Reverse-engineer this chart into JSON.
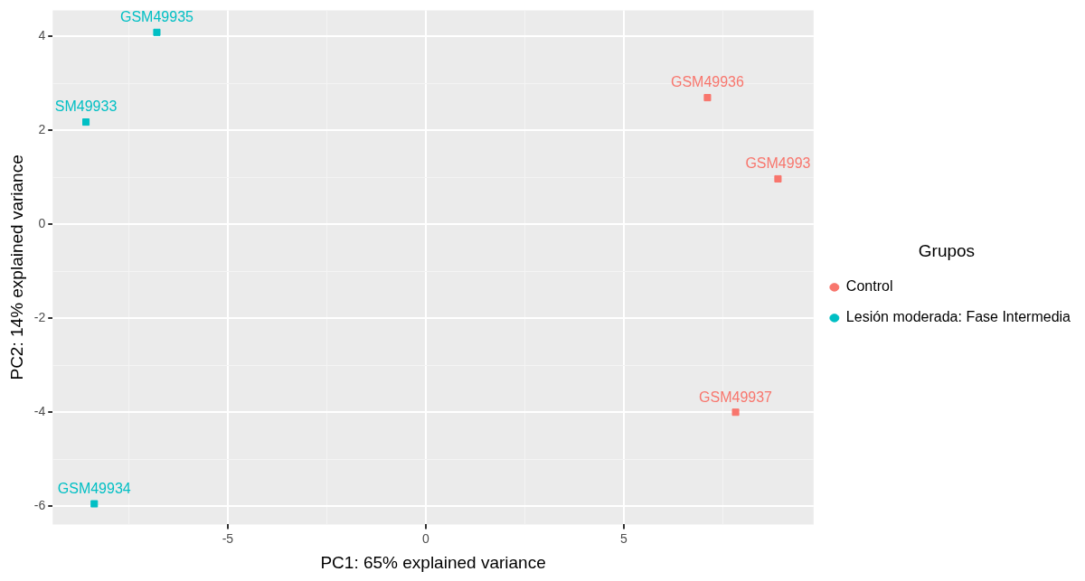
{
  "chart_data": {
    "type": "scatter",
    "xlabel": "PC1: 65% explained variance",
    "ylabel": "PC2: 14% explained variance",
    "legend_title": "Grupos",
    "series": [
      {
        "name": "Control",
        "color": "#f8766d",
        "x": [
          7.11,
          8.89,
          7.82
        ],
        "values": [
          2.7,
          0.97,
          -4.0
        ]
      },
      {
        "name": "Lesión moderada: Fase Intermedia",
        "color": "#00bfc4",
        "x": [
          -6.79,
          -8.58,
          -8.37
        ],
        "values": [
          4.09,
          2.18,
          -5.95
        ]
      }
    ],
    "annotations": [
      {
        "text": "GSM49936",
        "x": 7.11,
        "y": 2.7
      },
      {
        "text": "GSM4993",
        "x": 8.89,
        "y": 0.97
      },
      {
        "text": "GSM49937",
        "x": 7.82,
        "y": -4.0
      },
      {
        "text": "GSM49935",
        "x": -6.79,
        "y": 4.09
      },
      {
        "text": "SM49933",
        "x": -8.58,
        "y": 2.18
      },
      {
        "text": "GSM49934",
        "x": -8.37,
        "y": -5.95
      }
    ],
    "xlim": [
      -9.42,
      9.79
    ],
    "ylim": [
      -6.39,
      4.56
    ],
    "xticks": [
      {
        "value": -7.5,
        "label": null
      },
      -5,
      {
        "value": -2.5,
        "label": null
      },
      0,
      {
        "value": 2.5,
        "label": null
      },
      5,
      {
        "value": 7.5,
        "label": null
      }
    ],
    "yticks": [
      {
        "value": -5,
        "label": null
      },
      -6,
      -4,
      {
        "value": -3,
        "label": null
      },
      -2,
      {
        "value": -1,
        "label": null
      },
      0,
      {
        "value": 1,
        "label": null
      },
      2,
      {
        "value": 3,
        "label": null
      },
      4
    ],
    "grid": true,
    "legend": "right",
    "marker": "square"
  }
}
